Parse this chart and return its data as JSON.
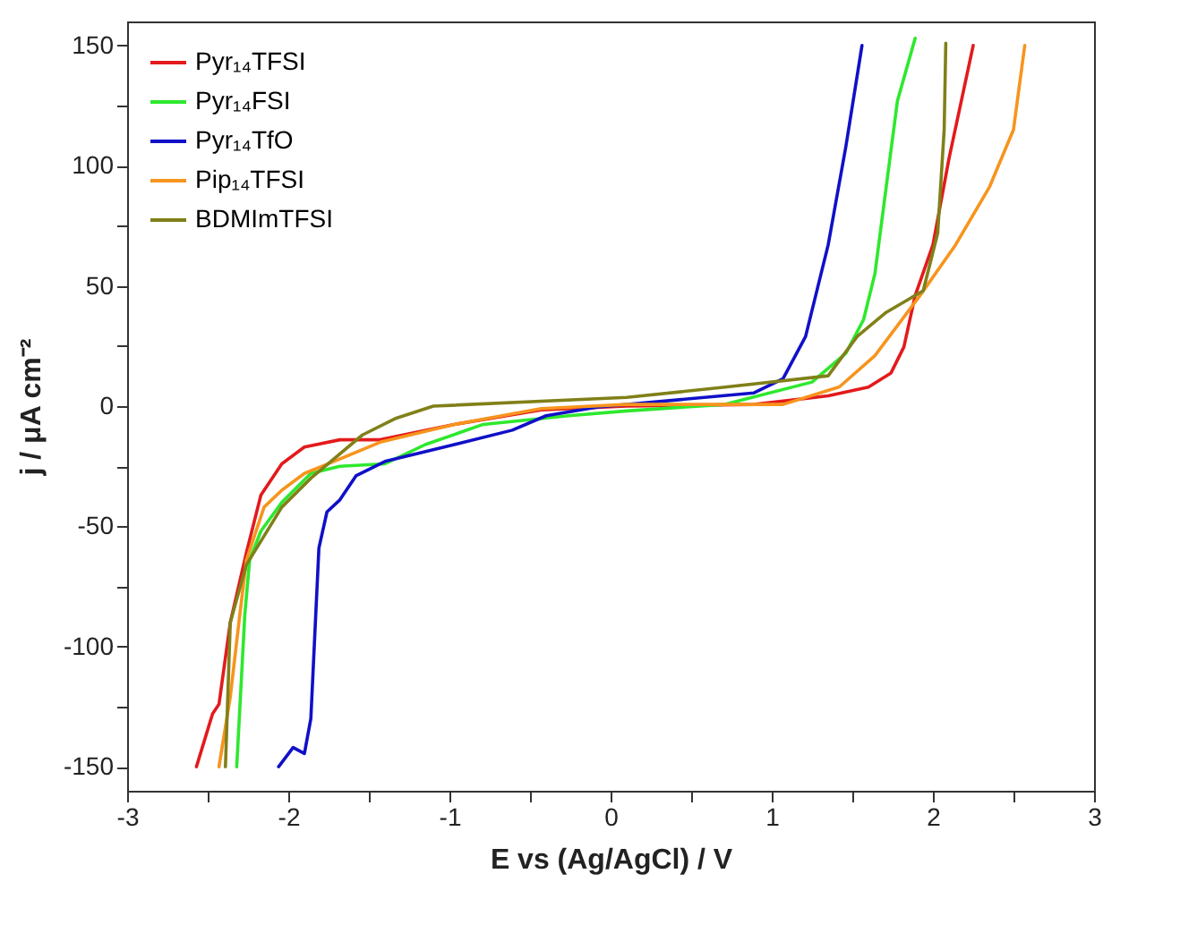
{
  "chart_data": {
    "type": "line",
    "xlabel": "E vs (Ag/AgCl) / V",
    "ylabel": "j / μA cm⁻²",
    "xlim": [
      -3,
      3
    ],
    "ylim": [
      -160,
      160
    ],
    "xticks": [
      -3,
      {
        "value": -2.5,
        "label": null
      },
      -2,
      {
        "value": -1.5,
        "label": null
      },
      -1,
      {
        "value": -0.5,
        "label": null
      },
      0,
      {
        "value": 0.5,
        "label": null
      },
      1,
      {
        "value": 1.5,
        "label": null
      },
      2,
      {
        "value": 2.5,
        "label": null
      },
      3
    ],
    "yticks": [
      -150,
      {
        "value": -125,
        "label": null
      },
      -100,
      {
        "value": -75,
        "label": null
      },
      -50,
      {
        "value": -25,
        "label": null
      },
      0,
      {
        "value": 25,
        "label": null
      },
      50,
      {
        "value": 75,
        "label": null
      },
      100,
      {
        "value": 125,
        "label": null
      },
      150
    ],
    "legend": "top left",
    "grid": false,
    "line_style": "solid",
    "series": [
      {
        "name": "Pyr₁₄TFSI",
        "color": "#e31a1c",
        "x": [
          -2.57,
          -2.47,
          -2.43,
          -2.36,
          -2.26,
          -2.17,
          -2.04,
          -1.9,
          -1.68,
          -1.43,
          -0.97,
          -0.43,
          0.1,
          0.89,
          1.35,
          1.6,
          1.74,
          1.82,
          1.89,
          2.0,
          2.1,
          2.25
        ],
        "values": [
          -150,
          -128,
          -124,
          -90,
          -61,
          -37,
          -24,
          -17,
          -14,
          -14,
          -7.6,
          -1.6,
          0,
          0.7,
          4.3,
          7.9,
          13.8,
          24.6,
          46,
          67,
          103,
          150
        ]
      },
      {
        "name": "Pyr₁₄FSI",
        "color": "#2ee82e",
        "x": [
          -2.32,
          -2.27,
          -2.24,
          -2.17,
          -2.04,
          -1.86,
          -1.68,
          -1.4,
          -1.15,
          -0.79,
          -0.26,
          0.1,
          0.71,
          1.25,
          1.46,
          1.57,
          1.64,
          1.71,
          1.78,
          1.89
        ],
        "values": [
          -150,
          -87,
          -64,
          -52,
          -40,
          -28,
          -25,
          -24,
          -16,
          -7.6,
          -4,
          -2,
          0.7,
          10,
          22,
          36,
          55,
          91,
          127,
          153
        ]
      },
      {
        "name": "Pyr₁₄TfO",
        "color": "#1010c8",
        "x": [
          -2.06,
          -1.97,
          -1.9,
          -1.86,
          -1.81,
          -1.76,
          -1.68,
          -1.58,
          -1.4,
          -0.97,
          -0.61,
          -0.4,
          -0.08,
          0.89,
          1.07,
          1.21,
          1.35,
          1.46,
          1.56
        ],
        "values": [
          -150,
          -142,
          -144.5,
          -130,
          -59,
          -44,
          -39,
          -29,
          -23,
          -16,
          -10,
          -4,
          -0.4,
          5.5,
          11.4,
          29,
          67,
          108,
          150
        ]
      },
      {
        "name": "Pip₁₄TFSI",
        "color": "#f7941d",
        "x": [
          -2.43,
          -2.36,
          -2.31,
          -2.26,
          -2.15,
          -2.04,
          -1.9,
          -1.68,
          -1.43,
          -0.97,
          -0.43,
          0.1,
          1.07,
          1.42,
          1.64,
          1.92,
          2.14,
          2.35,
          2.5,
          2.57
        ],
        "values": [
          -150,
          -121,
          -92,
          -64,
          -42,
          -35,
          -28,
          -22,
          -15,
          -7.6,
          -1,
          0.7,
          0.7,
          8,
          21,
          46,
          67,
          91,
          115,
          150
        ]
      },
      {
        "name": "BDMImTFSI",
        "color": "#808019",
        "x": [
          -2.39,
          -2.36,
          -2.26,
          -2.04,
          -1.86,
          -1.54,
          -1.33,
          -1.1,
          0.1,
          0.71,
          1.35,
          1.53,
          1.71,
          1.94,
          2.03,
          2.07,
          2.08
        ],
        "values": [
          -150,
          -90,
          -66,
          -42,
          -30,
          -12,
          -5,
          0,
          3.6,
          7.9,
          12.6,
          29,
          39,
          48,
          72,
          115,
          151
        ]
      }
    ]
  }
}
